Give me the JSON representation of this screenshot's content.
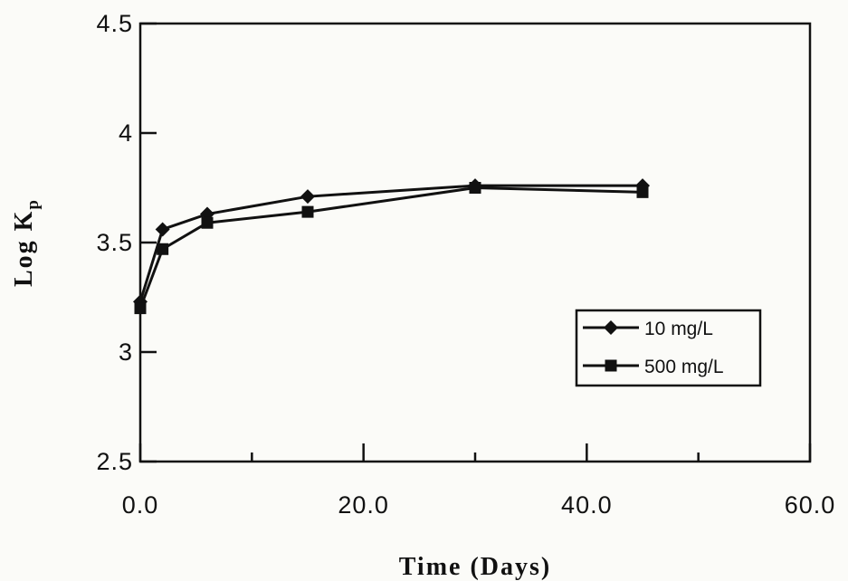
{
  "chart_data": {
    "type": "line",
    "title": "",
    "xlabel": "Time (Days)",
    "ylabel_main": "Log K",
    "ylabel_sub": "p",
    "xlim": [
      0,
      60
    ],
    "ylim": [
      2.5,
      4.5
    ],
    "xticks": [
      0,
      20,
      40,
      60
    ],
    "xtick_labels": [
      "0.0",
      "20.0",
      "40.0",
      "60.0"
    ],
    "x_minor_step": 10,
    "yticks": [
      2.5,
      3,
      3.5,
      4,
      4.5
    ],
    "ytick_labels": [
      "2.5",
      "3",
      "3.5",
      "4",
      "4.5"
    ],
    "grid": false,
    "legend_position": "right",
    "series": [
      {
        "name": "10 mg/L",
        "marker": "diamond",
        "color": "#111111",
        "x": [
          0,
          2,
          6,
          15,
          30,
          45
        ],
        "y": [
          3.23,
          3.56,
          3.63,
          3.71,
          3.76,
          3.76
        ]
      },
      {
        "name": "500 mg/L",
        "marker": "square",
        "color": "#111111",
        "x": [
          0,
          2,
          6,
          15,
          30,
          45
        ],
        "y": [
          3.2,
          3.47,
          3.59,
          3.64,
          3.75,
          3.73
        ]
      }
    ]
  }
}
